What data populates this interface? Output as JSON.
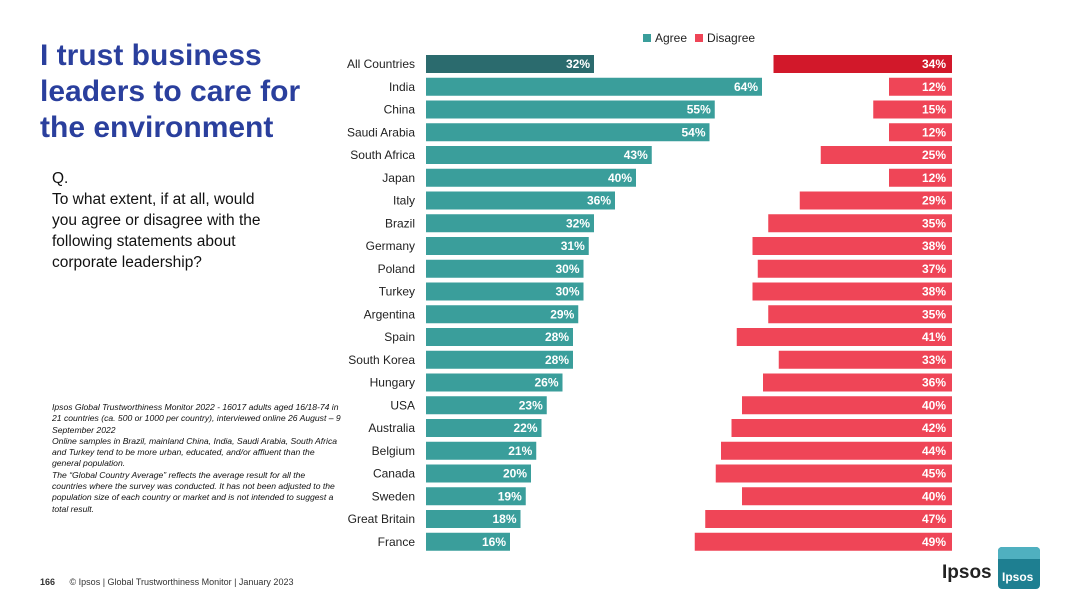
{
  "title": "I trust business leaders to care for the environment",
  "question": {
    "q": "Q.",
    "text": "To what extent, if at all, would you agree or disagree with the following statements about corporate leadership?"
  },
  "notes": [
    "Ipsos Global Trustworthiness Monitor 2022 - 16017 adults aged 16/18-74 in 21 countries (ca. 500 or 1000 per country), interviewed online 26 August – 9 September 2022",
    "Online samples in Brazil, mainland China, India, Saudi Arabia, South Africa and Turkey tend to be more urban, educated, and/or affluent than the general population.",
    "The “Global Country Average” reflects the average result for all the countries where the survey was conducted. It has not been adjusted to the population size of each country or market and is not intended to suggest a total result."
  ],
  "footer": {
    "page_number": "166",
    "text": "© Ipsos | Global Trustworthiness Monitor | January 2023"
  },
  "brand": {
    "word": "Ipsos",
    "logo_text": "Ipsos"
  },
  "legend": {
    "agree": "Agree",
    "disagree": "Disagree"
  },
  "colors": {
    "agree": "#3a9e9b",
    "agree_highlight": "#2b6b6e",
    "disagree": "#ef4557",
    "disagree_highlight": "#d2182a",
    "title": "#2a3f9d"
  },
  "chart_data": {
    "type": "bar",
    "title": "I trust business leaders to care for the environment",
    "categories": [
      "All Countries",
      "India",
      "China",
      "Saudi Arabia",
      "South Africa",
      "Japan",
      "Italy",
      "Brazil",
      "Germany",
      "Poland",
      "Turkey",
      "Argentina",
      "Spain",
      "South Korea",
      "Hungary",
      "USA",
      "Australia",
      "Belgium",
      "Canada",
      "Sweden",
      "Great Britain",
      "France"
    ],
    "series": [
      {
        "name": "Agree",
        "values": [
          32,
          64,
          55,
          54,
          43,
          40,
          36,
          32,
          31,
          30,
          30,
          29,
          28,
          28,
          26,
          23,
          22,
          21,
          20,
          19,
          18,
          16
        ],
        "labels": [
          "32%",
          "64%",
          "55%",
          "54%",
          "43%",
          "40%",
          "36%",
          "32%",
          "31%",
          "30%",
          "30%",
          "29%",
          "28%",
          "28%",
          "26%",
          "23%",
          "22%",
          "21%",
          "20%",
          "19%",
          "18%",
          "16%"
        ]
      },
      {
        "name": "Disagree",
        "values": [
          34,
          12,
          15,
          12,
          25,
          12,
          29,
          35,
          38,
          37,
          38,
          35,
          41,
          33,
          36,
          40,
          42,
          44,
          45,
          40,
          47,
          49
        ],
        "labels": [
          "34%",
          "12%",
          "15%",
          "12%",
          "25%",
          "12%",
          "29%",
          "35%",
          "38%",
          "37%",
          "38%",
          "35%",
          "41%",
          "33%",
          "36%",
          "40%",
          "42%",
          "44%",
          "45%",
          "40%",
          "47%",
          "49%"
        ]
      }
    ],
    "highlight_category": "All Countries",
    "xlim": [
      0,
      100
    ],
    "legend_position": "top-right"
  }
}
